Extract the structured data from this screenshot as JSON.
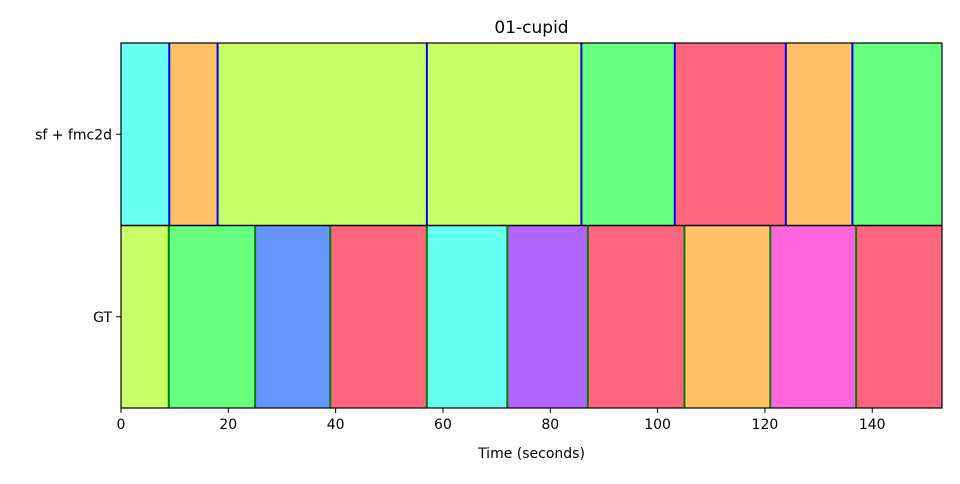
{
  "chart_data": {
    "type": "segmentation",
    "title": "01-cupid",
    "xlabel": "Time (seconds)",
    "ylabel": "",
    "xlim": [
      0,
      153
    ],
    "xticks": [
      0,
      20,
      40,
      60,
      80,
      100,
      120,
      140
    ],
    "rows": [
      {
        "name": "sf + fmc2d",
        "boundary_color": "#0000ff",
        "segments": [
          {
            "start": 0,
            "end": 9,
            "color": "#66fff0"
          },
          {
            "start": 9,
            "end": 18,
            "color": "#ffc066"
          },
          {
            "start": 18,
            "end": 57,
            "color": "#c8ff66"
          },
          {
            "start": 57,
            "end": 85.8,
            "color": "#c8ff66"
          },
          {
            "start": 85.8,
            "end": 103.2,
            "color": "#66ff7e"
          },
          {
            "start": 103.2,
            "end": 123.9,
            "color": "#ff667d"
          },
          {
            "start": 123.9,
            "end": 136.3,
            "color": "#ffc066"
          },
          {
            "start": 136.3,
            "end": 153,
            "color": "#66ff7e"
          }
        ]
      },
      {
        "name": "GT",
        "boundary_color": "#008000",
        "segments": [
          {
            "start": 0,
            "end": 8.9,
            "color": "#c8ff66"
          },
          {
            "start": 8.9,
            "end": 25,
            "color": "#66ff7e"
          },
          {
            "start": 25,
            "end": 39,
            "color": "#6694ff"
          },
          {
            "start": 39,
            "end": 57,
            "color": "#ff667d"
          },
          {
            "start": 57,
            "end": 72,
            "color": "#66fff0"
          },
          {
            "start": 72,
            "end": 87,
            "color": "#b066ff"
          },
          {
            "start": 87,
            "end": 105,
            "color": "#ff667d"
          },
          {
            "start": 105,
            "end": 121,
            "color": "#ffc066"
          },
          {
            "start": 121,
            "end": 137,
            "color": "#ff66dd"
          },
          {
            "start": 137,
            "end": 153,
            "color": "#ff667d"
          }
        ]
      }
    ]
  }
}
